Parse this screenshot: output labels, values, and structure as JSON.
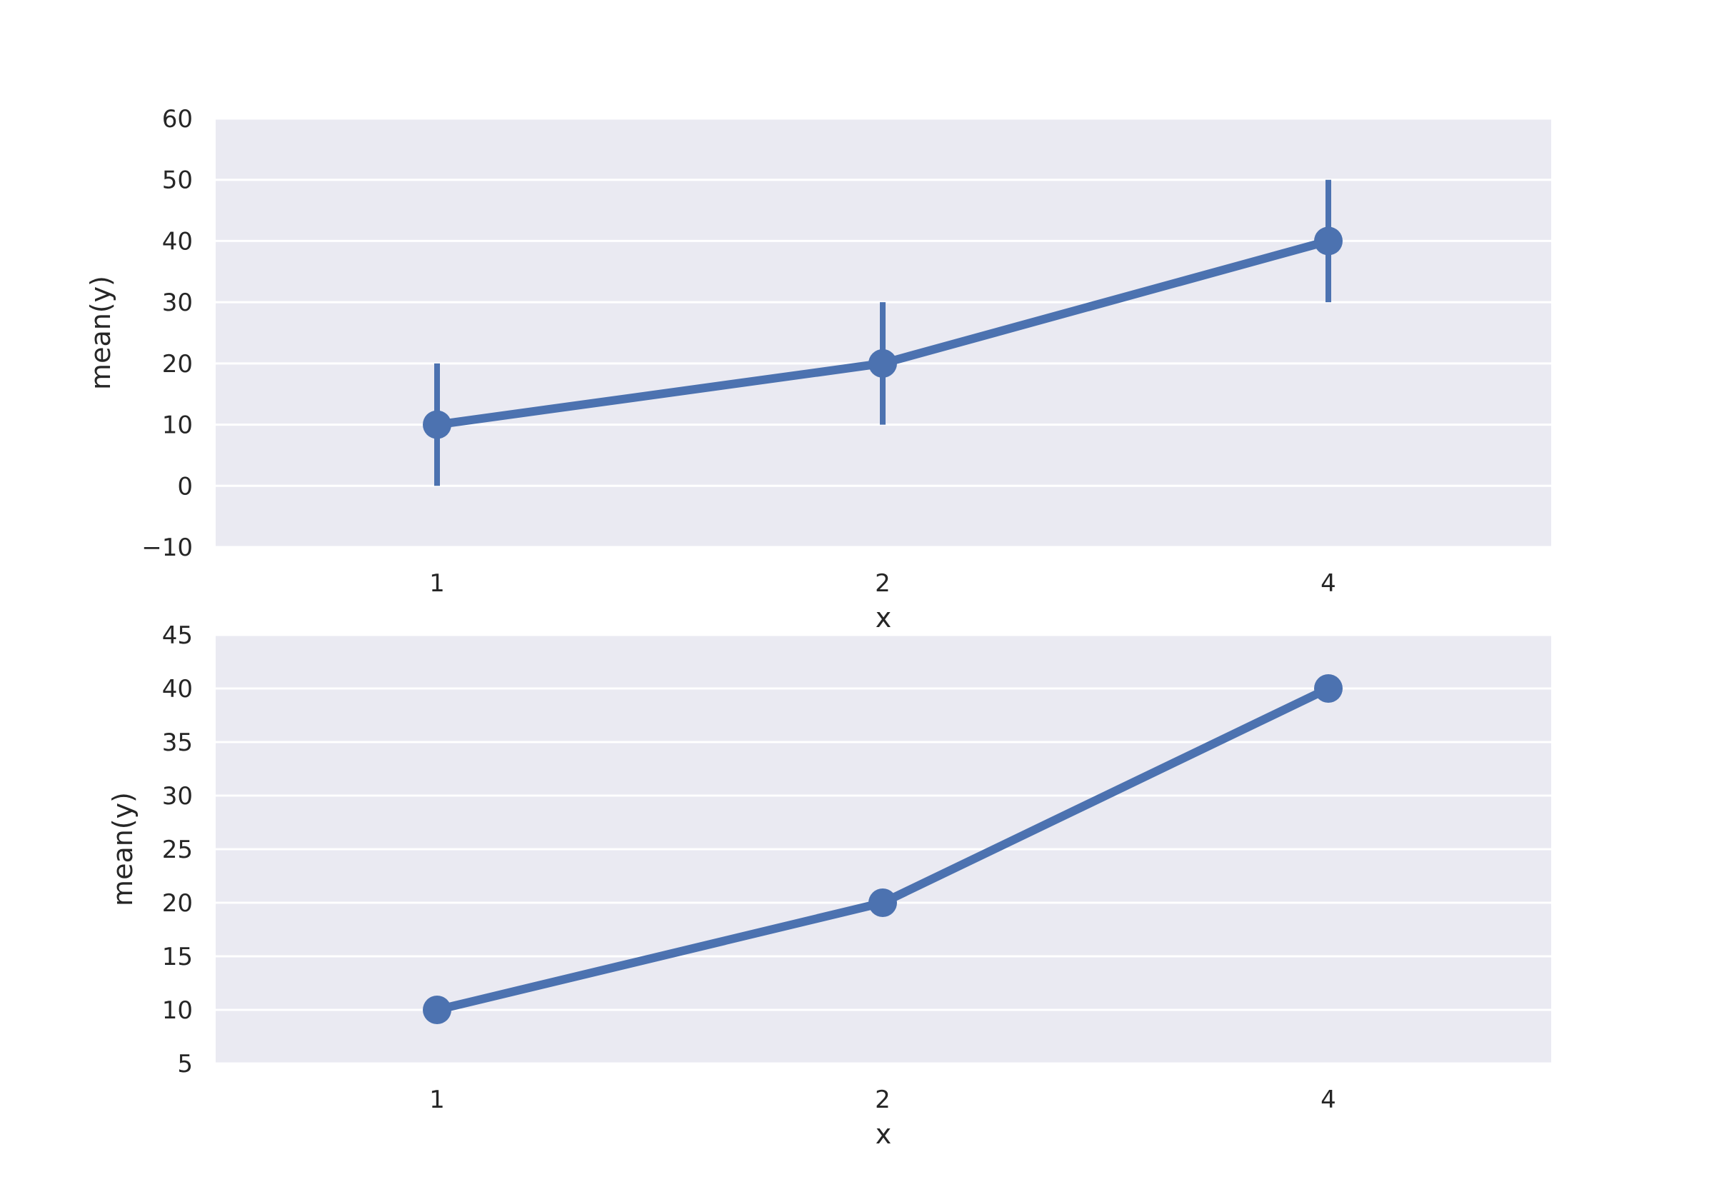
{
  "colors": {
    "background": "#ffffff",
    "axes_face": "#eaeaf2",
    "grid": "#ffffff",
    "series": "#4c72b0",
    "text": "#262626"
  },
  "chart_data": [
    {
      "type": "line",
      "x": [
        "1",
        "2",
        "4"
      ],
      "y": [
        10,
        20,
        40
      ],
      "error_bars": [
        [
          0,
          20
        ],
        [
          10,
          30
        ],
        [
          30,
          50
        ]
      ],
      "xlabel": "x",
      "ylabel": "mean(y)",
      "ylim": [
        -10,
        60
      ],
      "yticks": [
        -10,
        0,
        10,
        20,
        30,
        40,
        50,
        60
      ],
      "ytick_labels": [
        "−10",
        "0",
        "10",
        "20",
        "30",
        "40",
        "50",
        "60"
      ],
      "grid": true,
      "markers": true
    },
    {
      "type": "line",
      "x": [
        "1",
        "2",
        "4"
      ],
      "y": [
        10,
        20,
        40
      ],
      "xlabel": "x",
      "ylabel": "mean(y)",
      "ylim": [
        5,
        45
      ],
      "yticks": [
        5,
        10,
        15,
        20,
        25,
        30,
        35,
        40,
        45
      ],
      "ytick_labels": [
        "5",
        "10",
        "15",
        "20",
        "25",
        "30",
        "35",
        "40",
        "45"
      ],
      "grid": true,
      "markers": true
    }
  ]
}
